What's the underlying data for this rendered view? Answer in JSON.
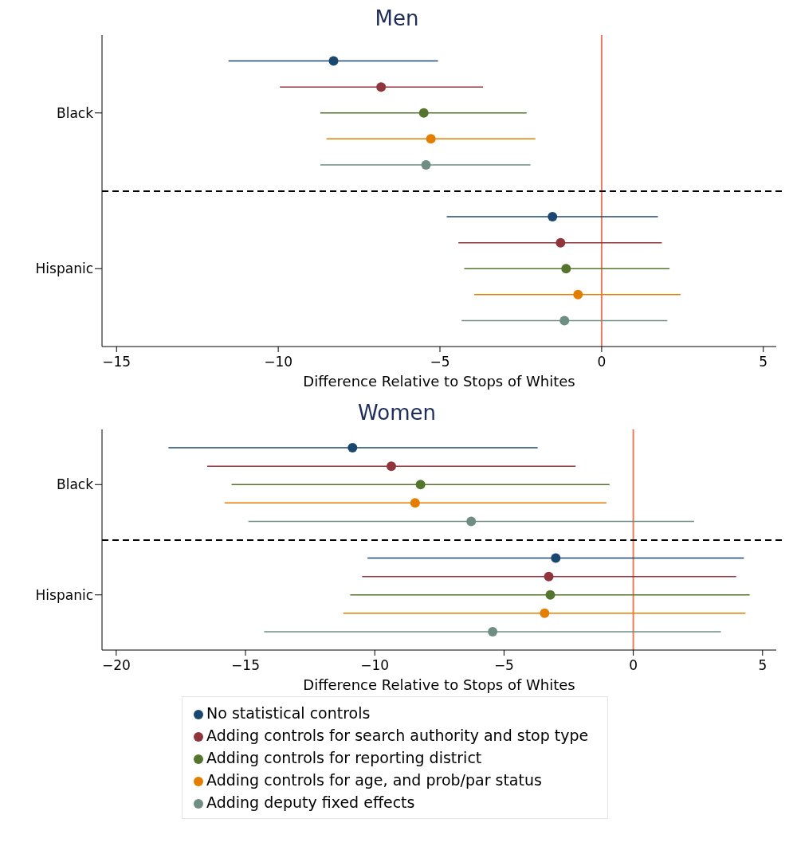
{
  "chart_data": [
    {
      "type": "scatter",
      "orientation": "horizontal",
      "title": "Men",
      "xlabel": "Difference Relative to Stops of Whites",
      "categories": [
        "Black",
        "Hispanic"
      ],
      "xlim": [
        -15.45,
        5.4
      ],
      "xticks": [
        -15,
        -10,
        -5,
        0,
        5
      ],
      "marker": "circle",
      "series": [
        {
          "color": "#1a476f",
          "values": [
            -8.29,
            -1.52
          ],
          "errors": [
            [
              -11.54,
              -5.06
            ],
            [
              -4.79,
              1.74
            ]
          ]
        },
        {
          "color": "#90353b",
          "values": [
            -6.82,
            -1.27
          ],
          "errors": [
            [
              -9.95,
              -3.67
            ],
            [
              -4.43,
              1.86
            ]
          ]
        },
        {
          "color": "#55752f",
          "values": [
            -5.5,
            -1.1
          ],
          "errors": [
            [
              -8.7,
              -2.32
            ],
            [
              -4.25,
              2.1
            ]
          ]
        },
        {
          "color": "#e37e00",
          "values": [
            -5.28,
            -0.73
          ],
          "errors": [
            [
              -8.51,
              -2.05
            ],
            [
              -3.94,
              2.44
            ]
          ]
        },
        {
          "color": "#6e8e84",
          "values": [
            -5.43,
            -1.15
          ],
          "errors": [
            [
              -8.7,
              -2.2
            ],
            [
              -4.33,
              2.03
            ]
          ]
        }
      ],
      "ref_lines": [
        {
          "axis": "x",
          "value": 0,
          "color": "#ea7a5b"
        }
      ]
    },
    {
      "type": "scatter",
      "orientation": "horizontal",
      "title": "Women",
      "xlabel": "Difference Relative to Stops of Whites",
      "categories": [
        "Black",
        "Hispanic"
      ],
      "xlim": [
        -20.55,
        5.53
      ],
      "xticks": [
        -20,
        -15,
        -10,
        -5,
        0,
        5
      ],
      "marker": "circle",
      "legend": "bottom",
      "series": [
        {
          "name": "No statistical controls",
          "color": "#1a476f",
          "values": [
            -10.86,
            -3.0
          ],
          "errors": [
            [
              -17.98,
              -3.7
            ],
            [
              -10.28,
              4.28
            ]
          ]
        },
        {
          "name": "Adding controls for search authority and stop type",
          "color": "#90353b",
          "values": [
            -9.36,
            -3.27
          ],
          "errors": [
            [
              -16.48,
              -2.23
            ],
            [
              -10.49,
              3.98
            ]
          ]
        },
        {
          "name": "Adding controls for reporting district",
          "color": "#55752f",
          "values": [
            -8.23,
            -3.21
          ],
          "errors": [
            [
              -15.54,
              -0.92
            ],
            [
              -10.95,
              4.5
            ]
          ]
        },
        {
          "name": "Adding controls for age, and prob/par status",
          "color": "#e37e00",
          "values": [
            -8.44,
            -3.43
          ],
          "errors": [
            [
              -15.81,
              -1.04
            ],
            [
              -11.22,
              4.34
            ]
          ]
        },
        {
          "name": "Adding deputy fixed effects",
          "color": "#6e8e84",
          "values": [
            -6.27,
            -5.44
          ],
          "errors": [
            [
              -14.89,
              2.35
            ],
            [
              -14.28,
              3.39
            ]
          ]
        }
      ],
      "ref_lines": [
        {
          "axis": "x",
          "value": 0,
          "color": "#ea7a5b"
        }
      ]
    }
  ]
}
